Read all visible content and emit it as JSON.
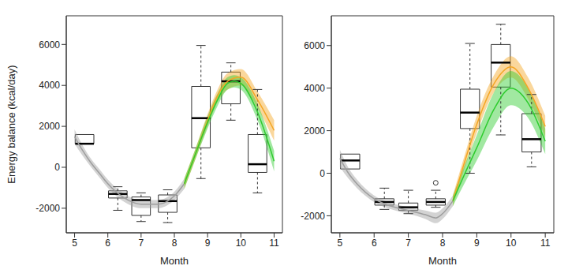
{
  "chart_data": [
    {
      "type": "box",
      "x_label": "Month",
      "y_label": "Energy balance (kcal/day)",
      "xlim": [
        4.75,
        11.25
      ],
      "xticks": [
        5,
        6,
        7,
        8,
        9,
        10,
        11
      ],
      "ylim": [
        -3200,
        7400
      ],
      "yticks": [
        -2000,
        0,
        2000,
        4000,
        6000
      ],
      "boxes": [
        {
          "x": 5.3,
          "low": null,
          "q1": 1150,
          "median": 1150,
          "q3": 1600,
          "high": null
        },
        {
          "x": 6.3,
          "low": -2100,
          "q1": -1500,
          "median": -1300,
          "q3": -1150,
          "high": -950
        },
        {
          "x": 7.0,
          "low": -2650,
          "q1": -2350,
          "median": -1600,
          "q3": -1450,
          "high": -1250
        },
        {
          "x": 7.8,
          "low": -2700,
          "q1": -2200,
          "median": -1650,
          "q3": -1350,
          "high": -1100
        },
        {
          "x": 8.8,
          "low": -550,
          "q1": 950,
          "median": 2400,
          "q3": 3950,
          "high": 5950
        },
        {
          "x": 9.7,
          "low": 2300,
          "q1": 3100,
          "median": 4200,
          "q3": 4650,
          "high": 5100
        },
        {
          "x": 10.5,
          "low": -1250,
          "q1": -250,
          "median": 150,
          "q3": 1600,
          "high": 3800
        }
      ],
      "outliers": [],
      "series": [
        {
          "color": "#9e9e9e",
          "x": [
            5,
            5.25,
            5.5,
            5.75,
            6,
            6.5,
            7,
            7.5,
            8,
            8.3
          ],
          "values": [
            1500,
            800,
            200,
            -300,
            -800,
            -1500,
            -1800,
            -1800,
            -1400,
            -800
          ],
          "lower": [
            1150,
            550,
            0,
            -500,
            -1000,
            -1700,
            -2000,
            -2000,
            -1600,
            -1050
          ],
          "upper": [
            1850,
            1050,
            400,
            -100,
            -600,
            -1300,
            -1600,
            -1600,
            -1200,
            -550
          ]
        },
        {
          "color": "#f5a623",
          "x": [
            8.3,
            8.6,
            9,
            9.3,
            9.6,
            10,
            10.5,
            11
          ],
          "values": [
            -800,
            500,
            2300,
            3500,
            4200,
            4400,
            3300,
            1800
          ],
          "lower": [
            -1050,
            250,
            2000,
            3200,
            3800,
            4000,
            2900,
            1300
          ],
          "upper": [
            -550,
            750,
            2600,
            3800,
            4600,
            4800,
            3700,
            2300
          ]
        },
        {
          "color": "#2ecc2e",
          "x": [
            8.3,
            8.6,
            9,
            9.3,
            9.6,
            9.8,
            10,
            10.5,
            11
          ],
          "values": [
            -800,
            500,
            2200,
            3300,
            4100,
            4200,
            4100,
            2700,
            300
          ],
          "lower": [
            -1050,
            250,
            1900,
            3000,
            3800,
            3900,
            3800,
            2300,
            -200
          ],
          "upper": [
            -550,
            750,
            2500,
            3600,
            4400,
            4500,
            4400,
            3100,
            800
          ]
        }
      ]
    },
    {
      "type": "box",
      "x_label": "Month",
      "xlim": [
        4.75,
        11.25
      ],
      "xticks": [
        5,
        6,
        7,
        8,
        9,
        10,
        11
      ],
      "ylim": [
        -2800,
        7400
      ],
      "yticks": [
        -2000,
        0,
        2000,
        4000,
        6000
      ],
      "boxes": [
        {
          "x": 5.3,
          "low": null,
          "q1": 200,
          "median": 600,
          "q3": 900,
          "high": null
        },
        {
          "x": 6.3,
          "low": -1700,
          "q1": -1500,
          "median": -1350,
          "q3": -1200,
          "high": -700
        },
        {
          "x": 7.0,
          "low": -1900,
          "q1": -1750,
          "median": -1600,
          "q3": -1400,
          "high": -800
        },
        {
          "x": 7.8,
          "low": -1600,
          "q1": -1500,
          "median": -1350,
          "q3": -1200,
          "high": -800
        },
        {
          "x": 8.8,
          "low": 0,
          "q1": 2100,
          "median": 2850,
          "q3": 3950,
          "high": 6100
        },
        {
          "x": 9.7,
          "low": 1800,
          "q1": 4050,
          "median": 5200,
          "q3": 6050,
          "high": 7000
        },
        {
          "x": 10.6,
          "low": 300,
          "q1": 1000,
          "median": 1600,
          "q3": 2800,
          "high": 3700
        }
      ],
      "outliers": [
        {
          "x": 7.8,
          "y": -450
        }
      ],
      "series": [
        {
          "color": "#9e9e9e",
          "x": [
            5,
            5.25,
            5.5,
            6,
            6.5,
            7,
            7.5,
            7.8,
            8,
            8.3
          ],
          "values": [
            700,
            0,
            -500,
            -1200,
            -1550,
            -1750,
            -1950,
            -2100,
            -1900,
            -1300
          ],
          "lower": [
            300,
            -250,
            -700,
            -1350,
            -1700,
            -1900,
            -2150,
            -2350,
            -2150,
            -1550
          ],
          "upper": [
            1100,
            250,
            -300,
            -1050,
            -1400,
            -1600,
            -1750,
            -1850,
            -1650,
            -1050
          ]
        },
        {
          "color": "#f5a623",
          "x": [
            8.3,
            8.6,
            9,
            9.5,
            10,
            10.5,
            11
          ],
          "values": [
            -1300,
            300,
            2300,
            4200,
            5000,
            4000,
            2200
          ],
          "lower": [
            -1550,
            0,
            1900,
            3800,
            4500,
            3500,
            1700
          ],
          "upper": [
            -1050,
            600,
            2700,
            4600,
            5500,
            4500,
            2700
          ]
        },
        {
          "color": "#2ecc2e",
          "x": [
            8.3,
            8.6,
            9,
            9.5,
            10,
            10.5,
            11
          ],
          "values": [
            -1300,
            -200,
            1200,
            3000,
            4000,
            3300,
            1500
          ],
          "lower": [
            -1550,
            -600,
            600,
            2200,
            3200,
            2600,
            900
          ],
          "upper": [
            -1050,
            200,
            1800,
            3800,
            4800,
            4000,
            2100
          ]
        }
      ]
    }
  ]
}
